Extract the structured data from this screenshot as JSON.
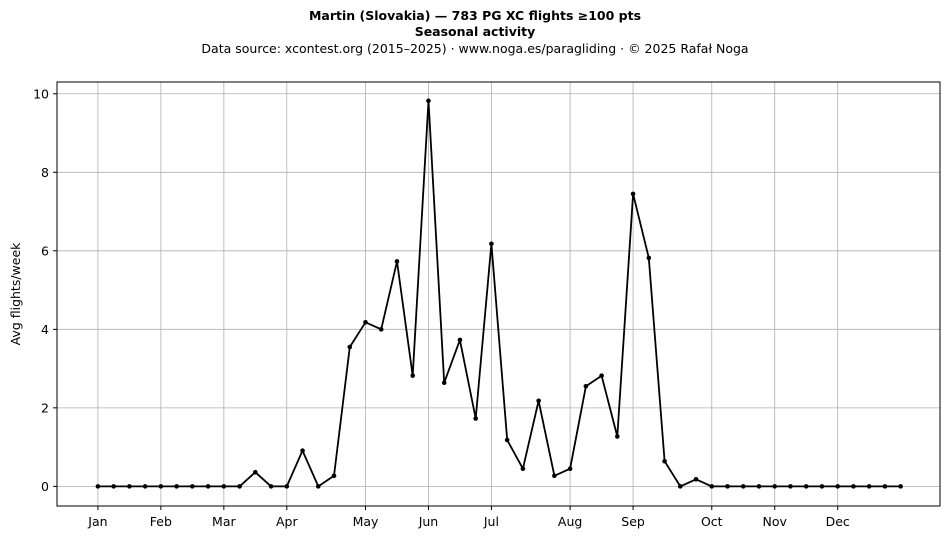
{
  "header": {
    "title": "Martin (Slovakia)  —  783 PG XC flights ≥100 pts",
    "subtitle": "Seasonal activity",
    "source": "Data source: xcontest.org (2015–2025)  ·  www.noga.es/paragliding  ·  © 2025 Rafał Noga"
  },
  "chart_data": {
    "type": "line",
    "title": "Martin (Slovakia)  —  783 PG XC flights ≥100 pts",
    "subtitle": "Seasonal activity",
    "xlabel": "",
    "ylabel": "Avg flights/week",
    "x_unit": "week of year",
    "xlim": [
      -1.6,
      54.5
    ],
    "ylim": [
      -0.5,
      10.3
    ],
    "grid": true,
    "x_ticks": [
      {
        "label": "Jan",
        "week": 1
      },
      {
        "label": "Feb",
        "week": 5
      },
      {
        "label": "Mar",
        "week": 9
      },
      {
        "label": "Apr",
        "week": 13
      },
      {
        "label": "May",
        "week": 18
      },
      {
        "label": "Jun",
        "week": 22
      },
      {
        "label": "Jul",
        "week": 26
      },
      {
        "label": "Aug",
        "week": 31
      },
      {
        "label": "Sep",
        "week": 35
      },
      {
        "label": "Oct",
        "week": 40
      },
      {
        "label": "Nov",
        "week": 44
      },
      {
        "label": "Dec",
        "week": 48
      }
    ],
    "y_ticks": [
      0,
      2,
      4,
      6,
      8,
      10
    ],
    "series": [
      {
        "color": "#000000",
        "weeks": [
          1,
          2,
          3,
          4,
          5,
          6,
          7,
          8,
          9,
          10,
          11,
          12,
          13,
          14,
          15,
          16,
          17,
          18,
          19,
          20,
          21,
          22,
          23,
          24,
          25,
          26,
          27,
          28,
          29,
          30,
          31,
          32,
          33,
          34,
          35,
          36,
          37,
          38,
          39,
          40,
          41,
          42,
          43,
          44,
          45,
          46,
          47,
          48,
          49,
          50,
          51,
          52
        ],
        "values": [
          0,
          0,
          0,
          0,
          0,
          0,
          0,
          0,
          0,
          0,
          0.36,
          0,
          0,
          0.91,
          0,
          0.27,
          3.55,
          4.18,
          4.0,
          5.73,
          2.82,
          9.82,
          2.64,
          3.73,
          1.73,
          6.18,
          1.18,
          0.45,
          2.18,
          0.27,
          0.45,
          2.55,
          2.82,
          1.27,
          7.45,
          5.82,
          0.64,
          0,
          0.18,
          0,
          0,
          0,
          0,
          0,
          0,
          0,
          0,
          0,
          0,
          0,
          0,
          0
        ]
      }
    ]
  }
}
